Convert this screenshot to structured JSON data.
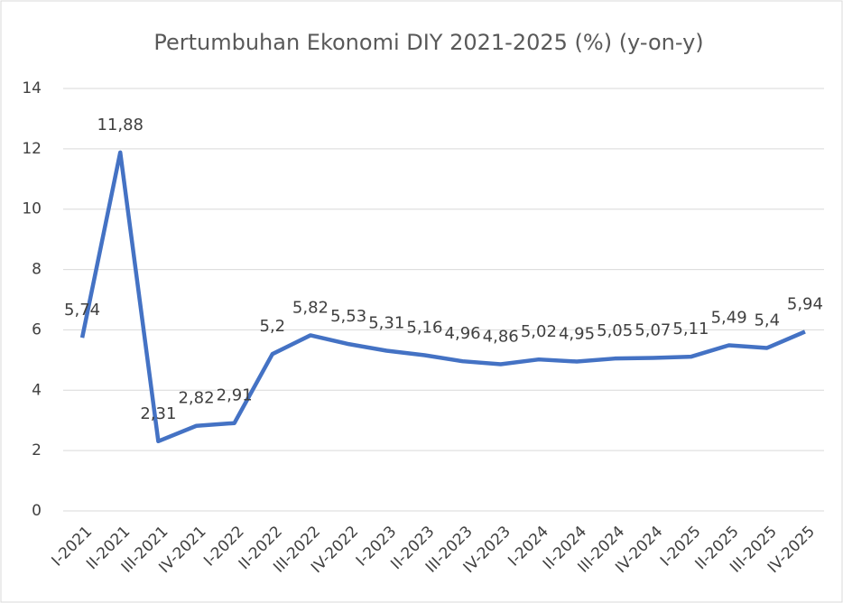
{
  "chart_data": {
    "type": "line",
    "title": "Pertumbuhan Ekonomi DIY 2021-2025 (%) (y-on-y)",
    "categories": [
      "I-2021",
      "II-2021",
      "III-2021",
      "IV-2021",
      "I-2022",
      "II-2022",
      "III-2022",
      "IV-2022",
      "I-2023",
      "II-2023",
      "III-2023",
      "IV-2023",
      "I-2024",
      "II-2024",
      "III-2024",
      "IV-2024",
      "I-2025",
      "II-2025",
      "III-2025",
      "IV-2025"
    ],
    "series": [
      {
        "name": "Pertumbuhan Ekonomi",
        "color": "#4472c4",
        "values": [
          5.74,
          11.88,
          2.31,
          2.82,
          2.91,
          5.2,
          5.82,
          5.53,
          5.31,
          5.16,
          4.96,
          4.86,
          5.02,
          4.95,
          5.05,
          5.07,
          5.11,
          5.49,
          5.4,
          5.94
        ],
        "value_labels": [
          "5,74",
          "11,88",
          "2,31",
          "2,82",
          "2,91",
          "5,2",
          "5,82",
          "5,53",
          "5,31",
          "5,16",
          "4,96",
          "4,86",
          "5,02",
          "4,95",
          "5,05",
          "5,07",
          "5,11",
          "5,49",
          "5,4",
          "5,94"
        ]
      }
    ],
    "ylim": [
      0,
      14
    ],
    "yticks": [
      0,
      2,
      4,
      6,
      8,
      10,
      12,
      14
    ],
    "grid": true
  }
}
